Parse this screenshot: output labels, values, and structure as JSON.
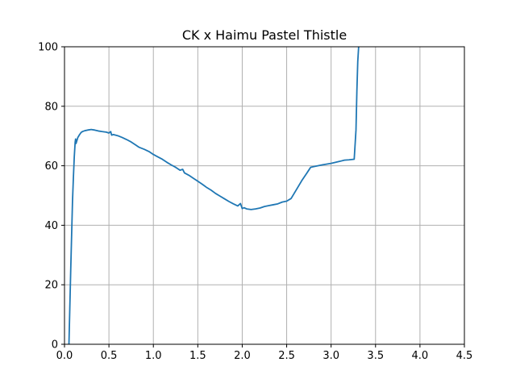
{
  "chart_data": {
    "type": "line",
    "title": "CK x Haimu Pastel Thistle",
    "xlabel": "",
    "ylabel": "",
    "xlim": [
      0,
      4.5
    ],
    "ylim": [
      0,
      100
    ],
    "xticks": [
      0.0,
      0.5,
      1.0,
      1.5,
      2.0,
      2.5,
      3.0,
      3.5,
      4.0,
      4.5
    ],
    "xtick_labels": [
      "0.0",
      "0.5",
      "1.0",
      "1.5",
      "2.0",
      "2.5",
      "3.0",
      "3.5",
      "4.0",
      "4.5"
    ],
    "yticks": [
      0,
      20,
      40,
      60,
      80,
      100
    ],
    "ytick_labels": [
      "0",
      "20",
      "40",
      "60",
      "80",
      "100"
    ],
    "grid": true,
    "line_color": "#1f77b4",
    "series": [
      {
        "x": [
          0.05,
          0.07,
          0.09,
          0.1,
          0.11,
          0.12,
          0.125,
          0.13,
          0.14,
          0.15,
          0.17,
          0.19,
          0.21,
          0.23,
          0.26,
          0.3,
          0.34,
          0.38,
          0.42,
          0.47,
          0.5,
          0.52,
          0.53,
          0.55,
          0.6,
          0.65,
          0.7,
          0.75,
          0.8,
          0.82,
          0.84,
          0.9,
          0.95,
          1.0,
          1.05,
          1.1,
          1.15,
          1.2,
          1.25,
          1.3,
          1.33,
          1.35,
          1.4,
          1.45,
          1.5,
          1.55,
          1.6,
          1.65,
          1.7,
          1.75,
          1.8,
          1.85,
          1.9,
          1.95,
          1.98,
          2.0,
          2.02,
          2.05,
          2.1,
          2.15,
          2.2,
          2.25,
          2.3,
          2.35,
          2.4,
          2.45,
          2.5,
          2.55,
          2.58,
          2.62,
          2.67,
          2.72,
          2.77,
          2.8,
          2.9,
          3.0,
          3.1,
          3.15,
          3.2,
          3.26,
          3.28,
          3.29,
          3.3,
          3.31,
          3.315,
          3.32
        ],
        "y": [
          0,
          25,
          48,
          56,
          63,
          68,
          69,
          67.5,
          68.5,
          69.5,
          70.5,
          71.3,
          71.6,
          71.8,
          72,
          72.2,
          72.0,
          71.7,
          71.5,
          71.3,
          71.0,
          71.5,
          70.3,
          70.5,
          70.1,
          69.5,
          68.8,
          68.0,
          67.0,
          66.6,
          66.2,
          65.5,
          64.8,
          63.8,
          63.0,
          62.2,
          61.2,
          60.3,
          59.5,
          58.5,
          58.8,
          57.6,
          56.8,
          55.8,
          54.8,
          53.8,
          52.7,
          51.8,
          50.7,
          49.8,
          48.9,
          48.0,
          47.2,
          46.5,
          47.3,
          45.6,
          45.9,
          45.5,
          45.3,
          45.5,
          45.8,
          46.3,
          46.6,
          46.9,
          47.2,
          47.8,
          48.1,
          49.0,
          50.5,
          52.5,
          55.0,
          57.2,
          59.5,
          59.7,
          60.3,
          60.8,
          61.5,
          61.9,
          62.0,
          62.2,
          72,
          85,
          95,
          100,
          101,
          102
        ]
      }
    ]
  }
}
